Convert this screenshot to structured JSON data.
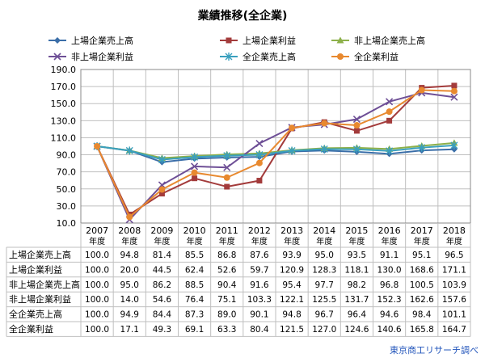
{
  "chart_data": {
    "type": "line",
    "title": "業績推移(全企業)",
    "ylim": [
      10.0,
      190.0
    ],
    "yticks": [
      "190.0",
      "170.0",
      "150.0",
      "130.0",
      "110.0",
      "90.0",
      "70.0",
      "50.0",
      "30.0",
      "10.0"
    ],
    "categories": [
      "2007",
      "2008",
      "2009",
      "2010",
      "2011",
      "2012",
      "2013",
      "2014",
      "2015",
      "2016",
      "2017",
      "2018"
    ],
    "category_suffix": "年度",
    "grid": true,
    "legend_position": "top",
    "series": [
      {
        "name": "上場企業売上高",
        "color": "#3b6ea8",
        "marker": "diamond",
        "values": [
          100.0,
          94.8,
          81.4,
          85.5,
          86.8,
          87.6,
          93.9,
          95.0,
          93.5,
          91.1,
          95.1,
          96.5
        ]
      },
      {
        "name": "上場企業利益",
        "color": "#a33b3b",
        "marker": "square",
        "values": [
          100.0,
          20.0,
          44.5,
          62.4,
          52.6,
          59.7,
          120.9,
          128.3,
          118.1,
          130.0,
          168.6,
          171.1
        ]
      },
      {
        "name": "非上場企業売上高",
        "color": "#8db04a",
        "marker": "triangle",
        "values": [
          100.0,
          95.0,
          86.2,
          88.5,
          90.4,
          91.6,
          95.4,
          97.7,
          98.2,
          96.8,
          100.5,
          103.9
        ]
      },
      {
        "name": "非上場企業利益",
        "color": "#6e4f96",
        "marker": "x",
        "values": [
          100.0,
          14.0,
          54.6,
          76.4,
          75.1,
          103.3,
          122.1,
          125.5,
          131.7,
          152.3,
          162.6,
          157.6
        ]
      },
      {
        "name": "全企業売上高",
        "color": "#3aa0be",
        "marker": "star",
        "values": [
          100.0,
          94.9,
          84.4,
          87.3,
          89.0,
          90.1,
          94.8,
          96.7,
          96.4,
          94.6,
          98.4,
          101.1
        ]
      },
      {
        "name": "全企業利益",
        "color": "#e8892f",
        "marker": "circle",
        "values": [
          100.0,
          17.1,
          49.3,
          69.1,
          63.3,
          80.4,
          121.5,
          127.0,
          124.6,
          140.6,
          165.8,
          164.7
        ]
      }
    ]
  },
  "table": {
    "rows": [
      {
        "label": "上場企業売上高",
        "values": [
          "100.0",
          "94.8",
          "81.4",
          "85.5",
          "86.8",
          "87.6",
          "93.9",
          "95.0",
          "93.5",
          "91.1",
          "95.1",
          "96.5"
        ]
      },
      {
        "label": "上場企業利益",
        "values": [
          "100.0",
          "20.0",
          "44.5",
          "62.4",
          "52.6",
          "59.7",
          "120.9",
          "128.3",
          "118.1",
          "130.0",
          "168.6",
          "171.1"
        ]
      },
      {
        "label": "非上場企業売上高",
        "values": [
          "100.0",
          "95.0",
          "86.2",
          "88.5",
          "90.4",
          "91.6",
          "95.4",
          "97.7",
          "98.2",
          "96.8",
          "100.5",
          "103.9"
        ]
      },
      {
        "label": "非上場企業利益",
        "values": [
          "100.0",
          "14.0",
          "54.6",
          "76.4",
          "75.1",
          "103.3",
          "122.1",
          "125.5",
          "131.7",
          "152.3",
          "162.6",
          "157.6"
        ]
      },
      {
        "label": "全企業売上高",
        "values": [
          "100.0",
          "94.9",
          "84.4",
          "87.3",
          "89.0",
          "90.1",
          "94.8",
          "96.7",
          "96.4",
          "94.6",
          "98.4",
          "101.1"
        ]
      },
      {
        "label": "全企業利益",
        "values": [
          "100.0",
          "17.1",
          "49.3",
          "69.1",
          "63.3",
          "80.4",
          "121.5",
          "127.0",
          "124.6",
          "140.6",
          "165.8",
          "164.7"
        ]
      }
    ]
  },
  "source": "東京商工リサーチ調べ"
}
